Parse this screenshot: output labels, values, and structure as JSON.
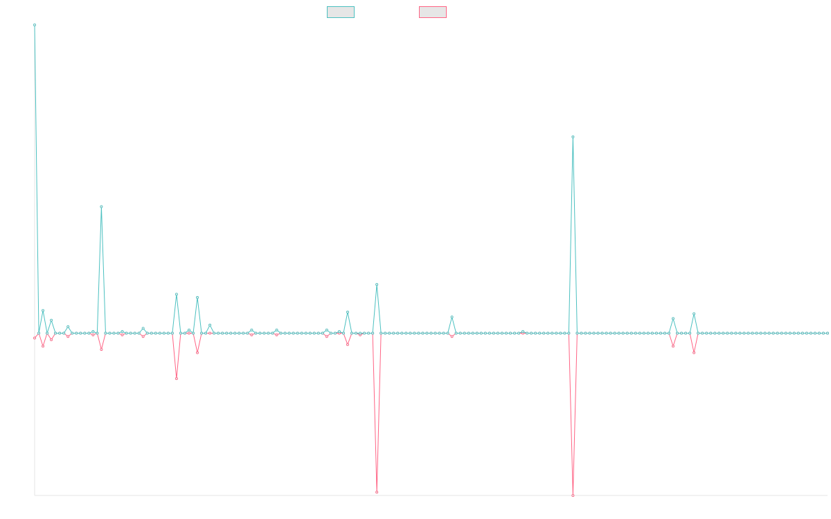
{
  "chart_data": {
    "type": "line",
    "title": "",
    "xlabel": "",
    "ylabel": "",
    "grid": false,
    "legend_position": "top-center",
    "x": [
      0,
      1,
      2,
      3,
      4,
      5,
      6,
      7,
      8,
      9,
      10,
      11,
      12,
      13,
      14,
      15,
      16,
      17,
      18,
      19,
      20,
      21,
      22,
      23,
      24,
      25,
      26,
      27,
      28,
      29,
      30,
      31,
      32,
      33,
      34,
      35,
      36,
      37,
      38,
      39,
      40,
      41,
      42,
      43,
      44,
      45,
      46,
      47,
      48,
      49,
      50,
      51,
      52,
      53,
      54,
      55,
      56,
      57,
      58,
      59,
      60,
      61,
      62,
      63,
      64,
      65,
      66,
      67,
      68,
      69,
      70,
      71,
      72,
      73,
      74,
      75,
      76,
      77,
      78,
      79,
      80,
      81,
      82,
      83,
      84,
      85,
      86,
      87,
      88,
      89,
      90,
      91,
      92,
      93,
      94,
      95,
      96,
      97,
      98,
      99,
      100,
      101,
      102,
      103,
      104,
      105,
      106,
      107,
      108,
      109,
      110,
      111,
      112,
      113,
      114,
      115,
      116,
      117,
      118,
      119,
      120,
      121,
      122,
      123,
      124,
      125,
      126,
      127,
      128,
      129,
      130,
      131,
      132,
      133,
      134,
      135,
      136,
      137,
      138,
      139,
      140,
      141,
      142,
      143,
      144,
      145,
      146,
      147,
      148,
      149,
      150,
      151,
      152,
      153,
      154,
      155,
      156,
      157,
      158,
      159,
      160,
      161,
      162,
      163,
      164,
      165,
      166,
      167,
      168,
      169,
      170,
      171,
      172,
      173,
      174,
      175,
      176,
      177,
      178,
      179,
      180,
      181,
      182,
      183,
      184,
      185,
      186,
      187,
      188,
      189,
      190
    ],
    "ylim": [
      -100,
      190
    ],
    "series": [
      {
        "name": "",
        "color": "#4bc0c0",
        "values": [
          190,
          0,
          14,
          0,
          8,
          0,
          0,
          0,
          4,
          0,
          0,
          0,
          0,
          0,
          1,
          0,
          78,
          0,
          0,
          0,
          0,
          1,
          0,
          0,
          0,
          0,
          3,
          0,
          0,
          0,
          0,
          0,
          0,
          0,
          24,
          0,
          0,
          2,
          0,
          22,
          0,
          0,
          5,
          0,
          0,
          0,
          0,
          0,
          0,
          0,
          0,
          0,
          2,
          0,
          0,
          0,
          0,
          0,
          2,
          0,
          0,
          0,
          0,
          0,
          0,
          0,
          0,
          0,
          0,
          0,
          2,
          0,
          0,
          1,
          0,
          13,
          0,
          0,
          0,
          0,
          0,
          0,
          30,
          0,
          0,
          0,
          0,
          0,
          0,
          0,
          0,
          0,
          0,
          0,
          0,
          0,
          0,
          0,
          0,
          0,
          10,
          0,
          0,
          0,
          0,
          0,
          0,
          0,
          0,
          0,
          0,
          0,
          0,
          0,
          0,
          0,
          0,
          1,
          0,
          0,
          0,
          0,
          0,
          0,
          0,
          0,
          0,
          0,
          0,
          121,
          0,
          0,
          0,
          0,
          0,
          0,
          0,
          0,
          0,
          0,
          0,
          0,
          0,
          0,
          0,
          0,
          0,
          0,
          0,
          0,
          0,
          0,
          0,
          9,
          0,
          0,
          0,
          0,
          12,
          0,
          0,
          0,
          0,
          0,
          0,
          0,
          0,
          0,
          0,
          0,
          0,
          0,
          0,
          0,
          0,
          0,
          0,
          0,
          0,
          0,
          0,
          0,
          0,
          0,
          0,
          0,
          0,
          0,
          0,
          0,
          0
        ]
      },
      {
        "name": "",
        "color": "#ff6384",
        "values": [
          -3,
          0,
          -8,
          0,
          -4,
          0,
          0,
          0,
          -2,
          0,
          0,
          0,
          0,
          0,
          -1,
          0,
          -10,
          0,
          0,
          0,
          0,
          -1,
          0,
          0,
          0,
          0,
          -2,
          0,
          0,
          0,
          0,
          0,
          0,
          0,
          -28,
          0,
          0,
          0,
          0,
          -12,
          0,
          0,
          0,
          0,
          0,
          0,
          0,
          0,
          0,
          0,
          0,
          0,
          -1,
          0,
          0,
          0,
          0,
          0,
          -1,
          0,
          0,
          0,
          0,
          0,
          0,
          0,
          0,
          0,
          0,
          0,
          -2,
          0,
          0,
          0,
          0,
          -7,
          0,
          0,
          -1,
          0,
          0,
          0,
          -98,
          0,
          0,
          0,
          0,
          0,
          0,
          0,
          0,
          0,
          0,
          0,
          0,
          0,
          0,
          0,
          0,
          0,
          -2,
          0,
          0,
          0,
          0,
          0,
          0,
          0,
          0,
          0,
          0,
          0,
          0,
          0,
          0,
          0,
          0,
          0,
          0,
          0,
          0,
          0,
          0,
          0,
          0,
          0,
          0,
          0,
          0,
          -100,
          0,
          0,
          0,
          0,
          0,
          0,
          0,
          0,
          0,
          0,
          0,
          0,
          0,
          0,
          0,
          0,
          0,
          0,
          0,
          0,
          0,
          0,
          0,
          -8,
          0,
          0,
          0,
          0,
          -12,
          0,
          0,
          0,
          0,
          0,
          0,
          0,
          0,
          0,
          0,
          0,
          0,
          0,
          0,
          0,
          0,
          0,
          0,
          0,
          0,
          0,
          0,
          0,
          0,
          0,
          0,
          0,
          0,
          0,
          0,
          0,
          0
        ]
      }
    ]
  }
}
